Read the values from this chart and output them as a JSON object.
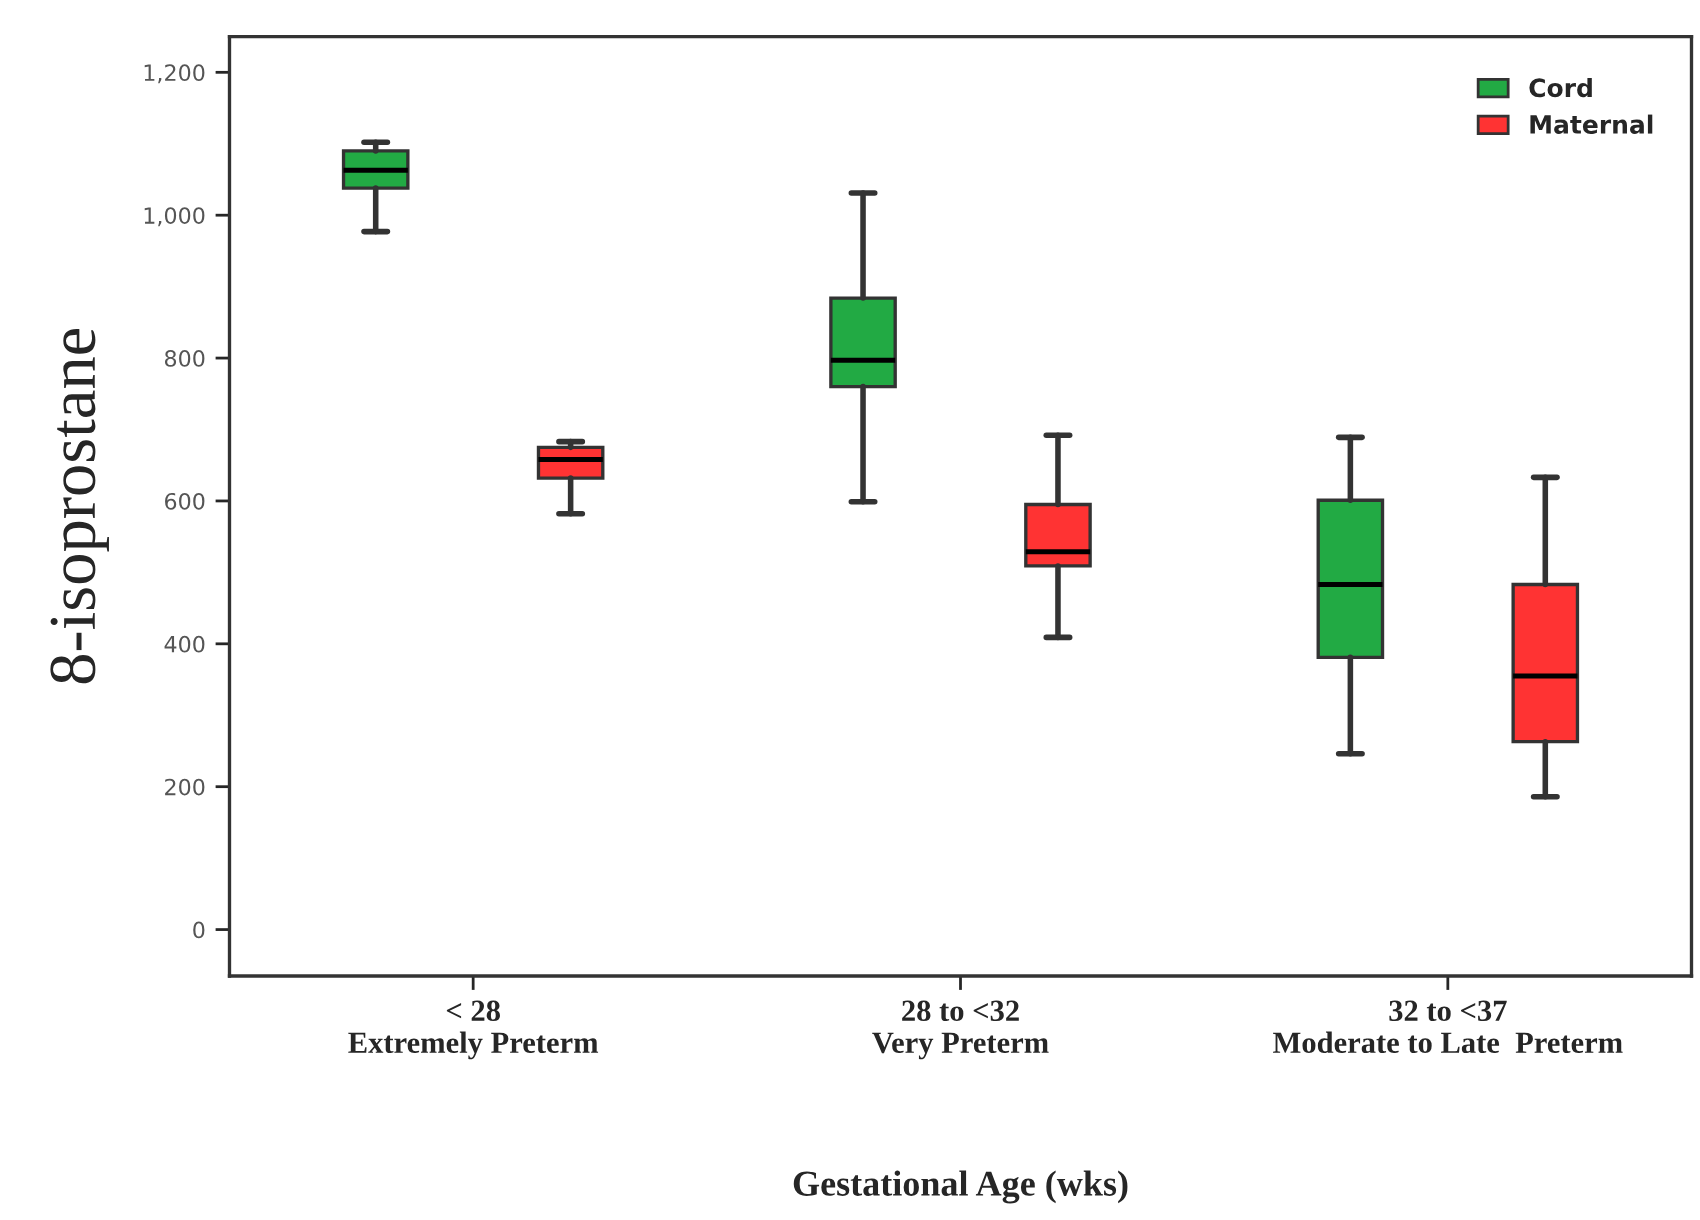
{
  "chart_data": {
    "type": "box",
    "xlabel": "Gestational Age (wks)",
    "ylabel": "8-isoprostane",
    "categories": [
      "< 28\nExtremely Preterm",
      "28 to <32\nVery Preterm",
      "32 to <37\nModerate to Late  Preterm"
    ],
    "series": [
      {
        "name": "Cord",
        "color": "#22aa44",
        "boxes": [
          {
            "low": 977,
            "q1": 1038,
            "median": 1063,
            "q3": 1090,
            "high": 1102
          },
          {
            "low": 599,
            "q1": 760,
            "median": 797,
            "q3": 884,
            "high": 1031
          },
          {
            "low": 246,
            "q1": 381,
            "median": 483,
            "q3": 601,
            "high": 689
          }
        ]
      },
      {
        "name": "Maternal",
        "color": "#ff3333",
        "boxes": [
          {
            "low": 582,
            "q1": 632,
            "median": 658,
            "q3": 675,
            "high": 683
          },
          {
            "low": 409,
            "q1": 509,
            "median": 529,
            "q3": 595,
            "high": 692
          },
          {
            "low": 186,
            "q1": 263,
            "median": 355,
            "q3": 483,
            "high": 633
          }
        ]
      }
    ],
    "ylim": [
      -65,
      1250
    ],
    "yticks": [
      0,
      200,
      400,
      600,
      800,
      {
        "value": 1000,
        "label": "1,000"
      },
      {
        "value": 1200,
        "label": "1,200"
      }
    ],
    "legend": "top right"
  }
}
